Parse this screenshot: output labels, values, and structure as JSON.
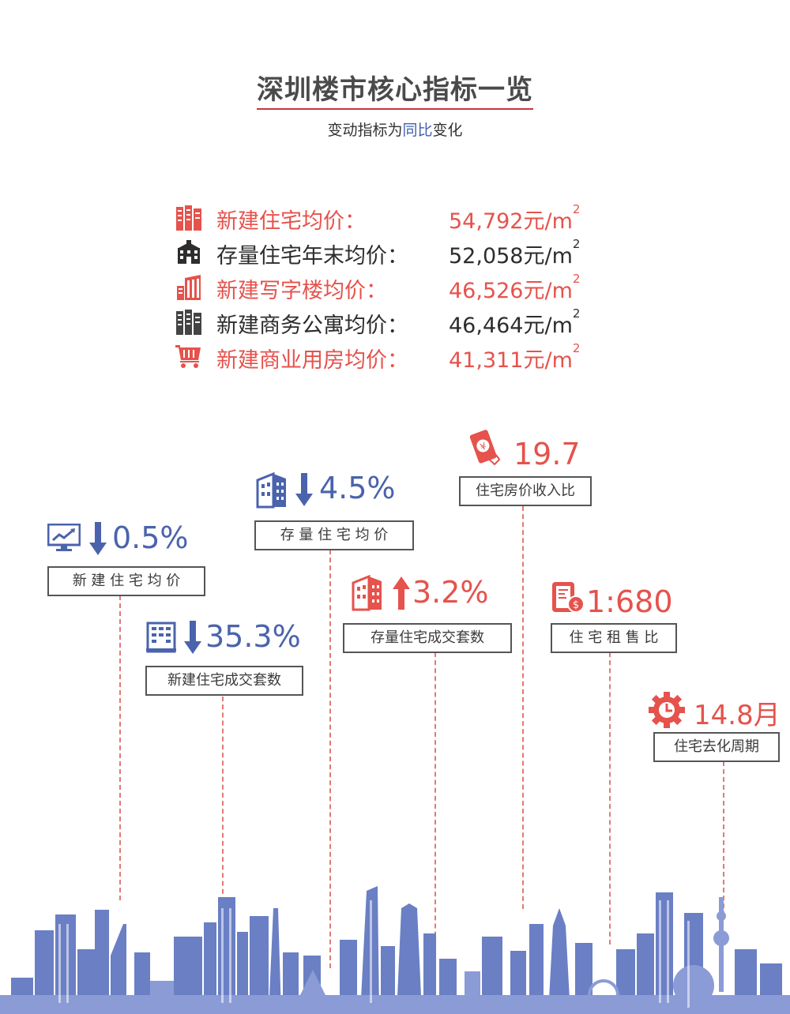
{
  "title": "深圳楼市核心指标一览",
  "subtitle": {
    "prefix": "变动指标为",
    "highlight": "同比",
    "suffix": "变化"
  },
  "prices": [
    {
      "label": "新建住宅均价：",
      "value": "54,792元/m",
      "exp": "2",
      "color": "#e6524c",
      "icon": "building-icon"
    },
    {
      "label": "存量住宅年末均价：",
      "value": "52,058元/m",
      "exp": "2",
      "color": "#2d2d2d",
      "icon": "apartment-icon"
    },
    {
      "label": "新建写字楼均价：",
      "value": "46,526元/m",
      "exp": "2",
      "color": "#e6524c",
      "icon": "office-tower-icon"
    },
    {
      "label": "新建商务公寓均价：",
      "value": "46,464元/m",
      "exp": "2",
      "color": "#2d2d2d",
      "icon": "building-icon"
    },
    {
      "label": "新建商业用房均价：",
      "value": "41,311元/m",
      "exp": "2",
      "color": "#e6524c",
      "icon": "shopping-cart-icon"
    }
  ],
  "indicators": [
    {
      "label": "新 建 住 宅 均 价",
      "value": "0.5%",
      "direction": "down",
      "color": "#4a63ad",
      "icon": "trend-chart-icon"
    },
    {
      "label": "新建住宅成交套数",
      "value": "35.3%",
      "direction": "down",
      "color": "#4a63ad",
      "icon": "building-icon"
    },
    {
      "label": "存 量 住 宅 均 价",
      "value": "4.5%",
      "direction": "down",
      "color": "#4a63ad",
      "icon": "building-icon"
    },
    {
      "label": "存量住宅成交套数",
      "value": "3.2%",
      "direction": "up",
      "color": "#e6524c",
      "icon": "building-icon"
    },
    {
      "label": "住宅房价收入比",
      "value": "19.7",
      "direction": "none",
      "color": "#e6524c",
      "icon": "money-phone-icon"
    },
    {
      "label": "住 宅 租 售 比",
      "value": "1:680",
      "direction": "none",
      "color": "#e6524c",
      "icon": "rent-document-icon"
    },
    {
      "label": "住宅去化周期",
      "value": "14.8月",
      "direction": "none",
      "color": "#e6524c",
      "icon": "clock-gear-icon"
    }
  ],
  "chart_data": {
    "type": "table",
    "title": "深圳楼市核心指标一览",
    "subtitle": "变动指标为同比变化",
    "rows": [
      {
        "name": "新建住宅均价",
        "value": 54792,
        "unit": "元/m²"
      },
      {
        "name": "存量住宅年末均价",
        "value": 52058,
        "unit": "元/m²"
      },
      {
        "name": "新建写字楼均价",
        "value": 46526,
        "unit": "元/m²"
      },
      {
        "name": "新建商务公寓均价",
        "value": 46464,
        "unit": "元/m²"
      },
      {
        "name": "新建商业用房均价",
        "value": 41311,
        "unit": "元/m²"
      }
    ],
    "changes": [
      {
        "name": "新建住宅均价",
        "change_pct": -0.5
      },
      {
        "name": "新建住宅成交套数",
        "change_pct": -35.3
      },
      {
        "name": "存量住宅均价",
        "change_pct": -4.5
      },
      {
        "name": "存量住宅成交套数",
        "change_pct": 3.2
      }
    ],
    "ratios": [
      {
        "name": "住宅房价收入比",
        "value": 19.7
      },
      {
        "name": "住宅租售比",
        "value": "1:680"
      },
      {
        "name": "住宅去化周期",
        "value": 14.8,
        "unit": "月"
      }
    ]
  },
  "skyline_color": "#5a6fb8"
}
